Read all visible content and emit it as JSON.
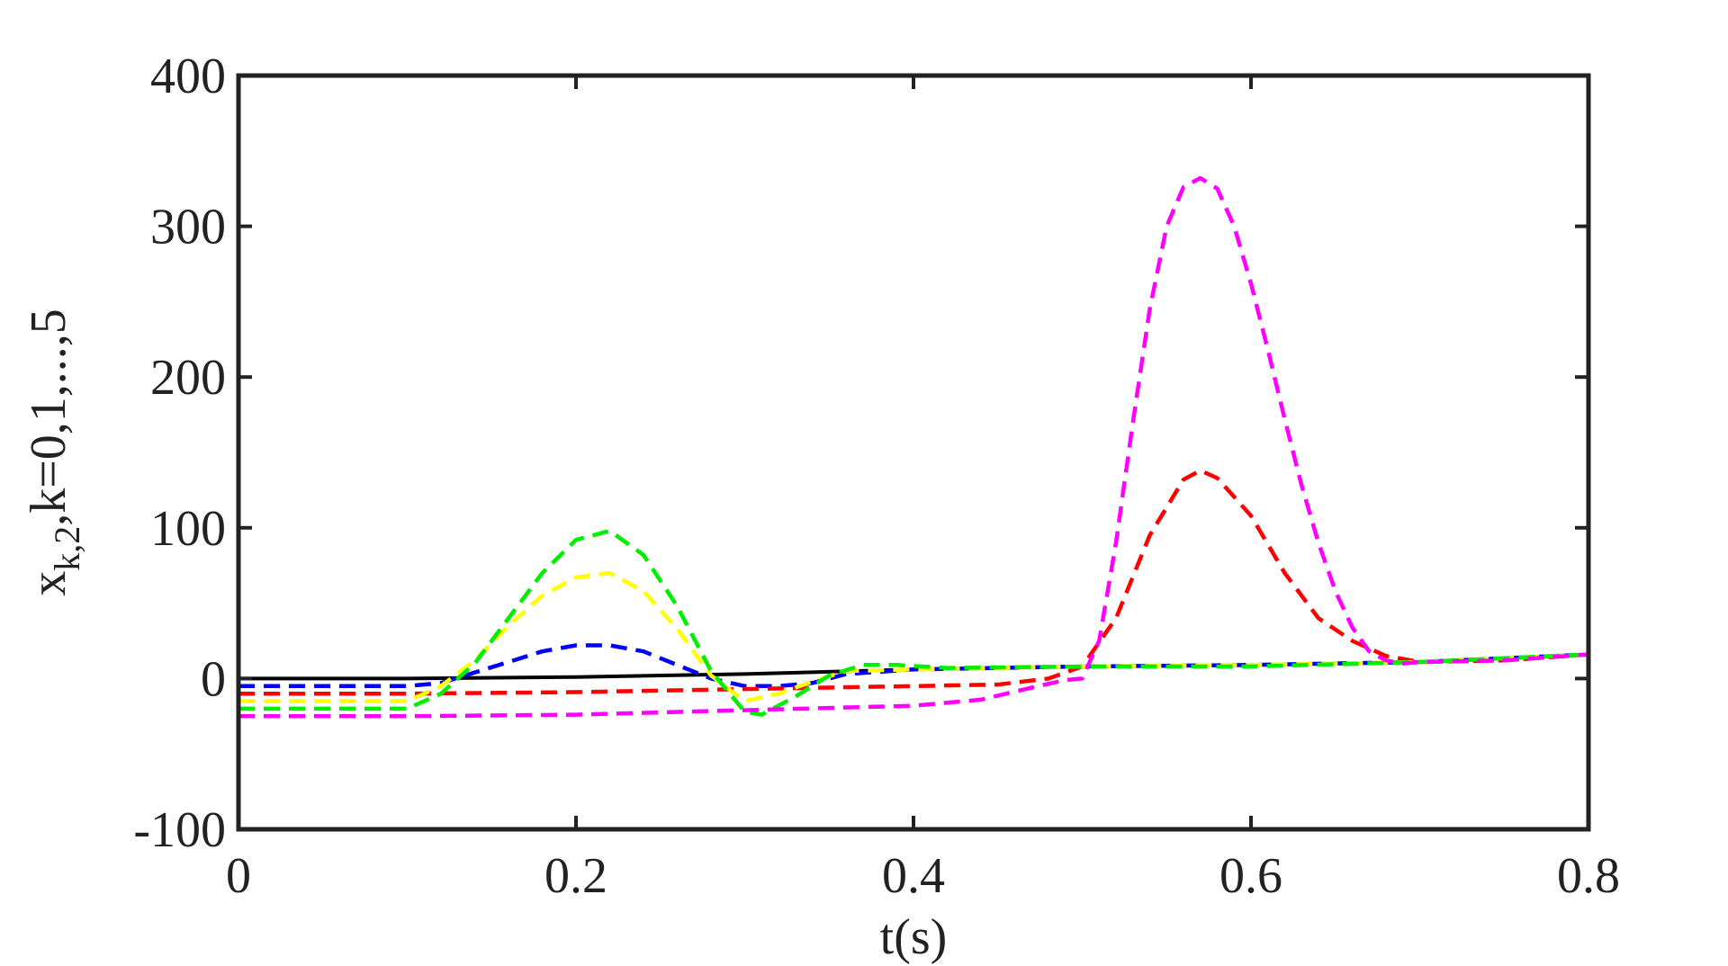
{
  "chart_data": {
    "type": "line",
    "title": "",
    "xlabel": "t(s)",
    "ylabel": {
      "main": "x",
      "subscript": "k,2",
      "suffix": ",k=0,1,...,5"
    },
    "xlim": [
      0,
      0.8
    ],
    "ylim": [
      -100,
      400
    ],
    "xticks": [
      0,
      0.2,
      0.4,
      0.6,
      0.8
    ],
    "xtick_labels": [
      "0",
      "0.2",
      "0.4",
      "0.6",
      "0.8"
    ],
    "yticks": [
      -100,
      0,
      100,
      200,
      300,
      400
    ],
    "ytick_labels": [
      "-100",
      "0",
      "100",
      "200",
      "300",
      "400"
    ],
    "grid": false,
    "legend": "none",
    "series": [
      {
        "color": "#000000",
        "style": "solid",
        "x": [
          0,
          0.1,
          0.2,
          0.3,
          0.4,
          0.5,
          0.6,
          0.7,
          0.8
        ],
        "y": [
          0,
          0,
          1,
          3,
          6,
          8,
          9,
          11,
          16
        ]
      },
      {
        "color": "#0000ff",
        "style": "dashed",
        "x": [
          0,
          0.05,
          0.1,
          0.12,
          0.14,
          0.16,
          0.18,
          0.2,
          0.22,
          0.24,
          0.26,
          0.28,
          0.3,
          0.32,
          0.34,
          0.36,
          0.4,
          0.5,
          0.6,
          0.7,
          0.8
        ],
        "y": [
          -5,
          -5,
          -5,
          -3,
          4,
          11,
          18,
          22,
          22,
          18,
          9,
          0,
          -5,
          -5,
          -3,
          3,
          6,
          8,
          9,
          11,
          16
        ]
      },
      {
        "color": "#ff0000",
        "style": "dashed",
        "x": [
          0,
          0.1,
          0.2,
          0.3,
          0.4,
          0.45,
          0.48,
          0.5,
          0.52,
          0.54,
          0.56,
          0.57,
          0.58,
          0.6,
          0.62,
          0.64,
          0.66,
          0.68,
          0.7,
          0.75,
          0.8
        ],
        "y": [
          -10,
          -10,
          -9,
          -7,
          -5,
          -4,
          0,
          8,
          40,
          95,
          132,
          138,
          133,
          108,
          70,
          40,
          25,
          15,
          11,
          12,
          16
        ]
      },
      {
        "color": "#ffff00",
        "style": "dashed",
        "x": [
          0,
          0.1,
          0.12,
          0.14,
          0.16,
          0.18,
          0.2,
          0.22,
          0.24,
          0.26,
          0.28,
          0.3,
          0.32,
          0.34,
          0.36,
          0.4,
          0.5,
          0.6,
          0.7,
          0.8
        ],
        "y": [
          -15,
          -15,
          -5,
          12,
          35,
          55,
          67,
          70,
          58,
          33,
          2,
          -15,
          -10,
          -2,
          5,
          6,
          8,
          9,
          11,
          16
        ]
      },
      {
        "color": "#00ee00",
        "style": "dashed",
        "x": [
          0,
          0.1,
          0.12,
          0.14,
          0.16,
          0.18,
          0.2,
          0.22,
          0.24,
          0.26,
          0.28,
          0.3,
          0.31,
          0.33,
          0.35,
          0.37,
          0.39,
          0.42,
          0.5,
          0.6,
          0.7,
          0.8
        ],
        "y": [
          -20,
          -20,
          -10,
          10,
          40,
          70,
          92,
          98,
          82,
          48,
          5,
          -22,
          -24,
          -12,
          2,
          9,
          9,
          7,
          8,
          8,
          11,
          16
        ]
      },
      {
        "color": "#ff00ff",
        "style": "dashed",
        "x": [
          0,
          0.1,
          0.2,
          0.3,
          0.4,
          0.44,
          0.47,
          0.49,
          0.5,
          0.51,
          0.52,
          0.53,
          0.54,
          0.55,
          0.56,
          0.57,
          0.58,
          0.59,
          0.6,
          0.61,
          0.62,
          0.63,
          0.64,
          0.65,
          0.66,
          0.67,
          0.68,
          0.69,
          0.7,
          0.75,
          0.8
        ],
        "y": [
          -25,
          -25,
          -24,
          -21,
          -18,
          -14,
          -6,
          -1,
          0,
          25,
          90,
          170,
          245,
          300,
          326,
          332,
          325,
          300,
          262,
          218,
          172,
          128,
          90,
          58,
          34,
          18,
          12,
          10,
          11,
          12,
          16
        ]
      }
    ]
  }
}
